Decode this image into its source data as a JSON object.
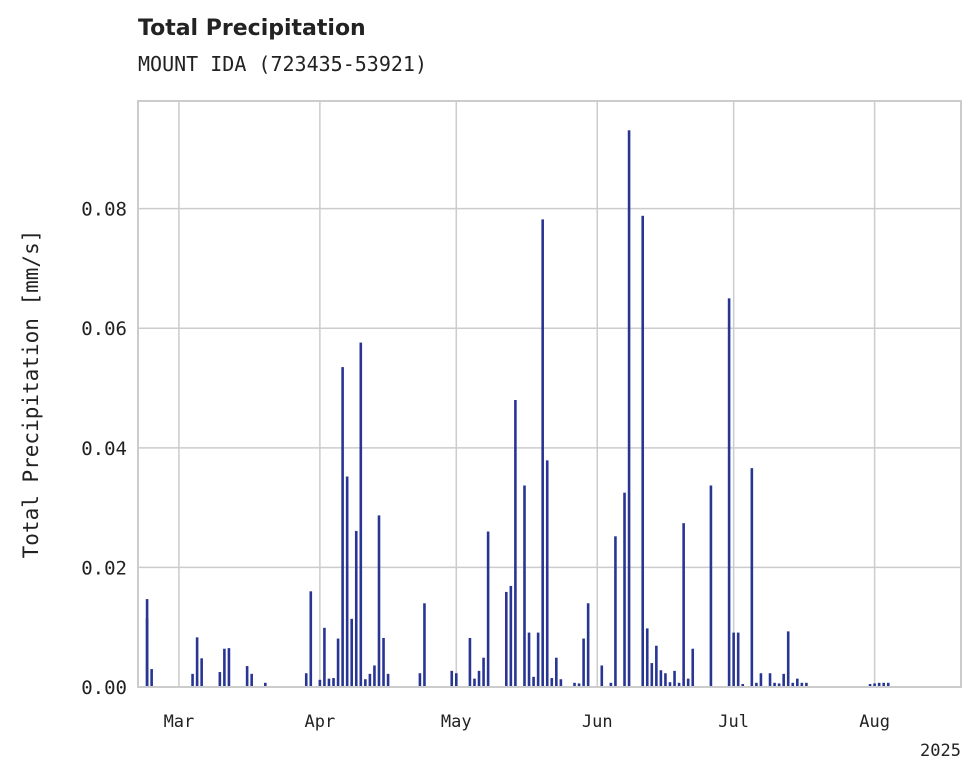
{
  "chart_data": {
    "type": "bar",
    "title": "Total Precipitation",
    "subtitle": "MOUNT IDA (723435-53921)",
    "ylabel": "Total Precipitation [mm/s]",
    "xlabel": "",
    "x_axis_year_label": "2025",
    "xlim": [
      "2025-02-20",
      "2025-08-20"
    ],
    "ylim": [
      0,
      0.098
    ],
    "grid": true,
    "x_ticks": [
      {
        "date": "2025-03-01",
        "label": "Mar"
      },
      {
        "date": "2025-04-01",
        "label": "Apr"
      },
      {
        "date": "2025-05-01",
        "label": "May"
      },
      {
        "date": "2025-06-01",
        "label": "Jun"
      },
      {
        "date": "2025-07-01",
        "label": "Jul"
      },
      {
        "date": "2025-08-01",
        "label": "Aug"
      }
    ],
    "y_ticks": [
      {
        "value": 0,
        "label": "0.00"
      },
      {
        "value": 0.02,
        "label": "0.02"
      },
      {
        "value": 0.04,
        "label": "0.04"
      },
      {
        "value": 0.06,
        "label": "0.06"
      },
      {
        "value": 0.08,
        "label": "0.08"
      }
    ],
    "colors": {
      "bar": "#283593",
      "grid": "#cccccc"
    },
    "x": [
      "2025-02-22",
      "2025-02-22",
      "2025-02-23",
      "2025-03-04",
      "2025-03-05",
      "2025-03-06",
      "2025-03-10",
      "2025-03-11",
      "2025-03-12",
      "2025-03-16",
      "2025-03-17",
      "2025-03-20",
      "2025-03-29",
      "2025-03-30",
      "2025-04-01",
      "2025-04-02",
      "2025-04-03",
      "2025-04-04",
      "2025-04-05",
      "2025-04-06",
      "2025-04-07",
      "2025-04-08",
      "2025-04-09",
      "2025-04-10",
      "2025-04-11",
      "2025-04-12",
      "2025-04-13",
      "2025-04-14",
      "2025-04-15",
      "2025-04-16",
      "2025-04-23",
      "2025-04-24",
      "2025-04-30",
      "2025-05-01",
      "2025-05-04",
      "2025-05-05",
      "2025-05-06",
      "2025-05-07",
      "2025-05-08",
      "2025-05-12",
      "2025-05-13",
      "2025-05-14",
      "2025-05-16",
      "2025-05-17",
      "2025-05-18",
      "2025-05-19",
      "2025-05-20",
      "2025-05-21",
      "2025-05-22",
      "2025-05-23",
      "2025-05-24",
      "2025-05-27",
      "2025-05-28",
      "2025-05-29",
      "2025-05-30",
      "2025-06-02",
      "2025-06-04",
      "2025-06-05",
      "2025-06-07",
      "2025-06-08",
      "2025-06-11",
      "2025-06-12",
      "2025-06-13",
      "2025-06-14",
      "2025-06-15",
      "2025-06-16",
      "2025-06-17",
      "2025-06-18",
      "2025-06-19",
      "2025-06-20",
      "2025-06-21",
      "2025-06-22",
      "2025-06-26",
      "2025-06-30",
      "2025-07-01",
      "2025-07-02",
      "2025-07-03",
      "2025-07-05",
      "2025-07-06",
      "2025-07-07",
      "2025-07-09",
      "2025-07-10",
      "2025-07-11",
      "2025-07-12",
      "2025-07-13",
      "2025-07-14",
      "2025-07-15",
      "2025-07-16",
      "2025-07-17",
      "2025-07-31",
      "2025-08-01",
      "2025-08-02",
      "2025-08-03",
      "2025-08-04"
    ],
    "values": [
      0.0115,
      0.0147,
      0.003,
      0.0022,
      0.0083,
      0.0048,
      0.0025,
      0.0064,
      0.0065,
      0.0035,
      0.0022,
      0.0007,
      0.0023,
      0.016,
      0.0012,
      0.0099,
      0.0014,
      0.0015,
      0.0081,
      0.0535,
      0.0352,
      0.0114,
      0.0261,
      0.0576,
      0.0013,
      0.0022,
      0.0036,
      0.0287,
      0.0082,
      0.0022,
      0.0023,
      0.014,
      0.0027,
      0.0023,
      0.0082,
      0.0014,
      0.0027,
      0.0049,
      0.026,
      0.0159,
      0.0169,
      0.048,
      0.0337,
      0.0091,
      0.0017,
      0.0091,
      0.0782,
      0.0379,
      0.0015,
      0.0049,
      0.0013,
      0.0007,
      0.0006,
      0.0081,
      0.014,
      0.0036,
      0.0007,
      0.0252,
      0.0325,
      0.0931,
      0.0788,
      0.0098,
      0.004,
      0.0069,
      0.0028,
      0.0023,
      0.0008,
      0.0027,
      0.0007,
      0.0274,
      0.0014,
      0.0064,
      0.0337,
      0.065,
      0.0091,
      0.0091,
      0.0005,
      0.0366,
      0.0007,
      0.0023,
      0.0023,
      0.0007,
      0.0006,
      0.0022,
      0.0093,
      0.0007,
      0.0014,
      0.0007,
      0.0007,
      0.0005,
      0.0006,
      0.0007,
      0.0007,
      0.0007
    ]
  }
}
